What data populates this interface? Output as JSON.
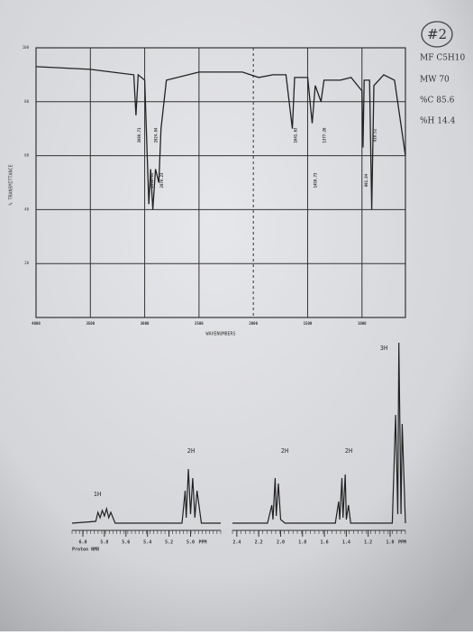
{
  "badge": "#2",
  "sidebar": [
    "MF C5H10",
    "MW 70",
    "%C 85.6",
    "%H 14.4"
  ],
  "chart_data": [
    {
      "type": "line",
      "xlabel": "WAVENUMBERS",
      "ylabel": "% TRANSMITTANCE",
      "color": "#222222",
      "xlim": [
        4000,
        600
      ],
      "ylim": [
        0,
        100
      ],
      "xticks": [
        4000,
        3500,
        3000,
        2500,
        2000,
        1500,
        1000
      ],
      "yticks": [
        20,
        40,
        60,
        80,
        100
      ],
      "grid": true,
      "x": [
        4000,
        3500,
        3100,
        3080,
        3060,
        3000,
        2962,
        2945,
        2925,
        2900,
        2870,
        2850,
        2800,
        2500,
        2100,
        1950,
        1820,
        1700,
        1641,
        1620,
        1500,
        1458,
        1430,
        1377,
        1350,
        1200,
        1100,
        1000,
        991,
        980,
        930,
        910,
        890,
        800,
        700,
        600
      ],
      "values": [
        93,
        92,
        90,
        75,
        90,
        88,
        42,
        55,
        40,
        55,
        50,
        70,
        88,
        91,
        91,
        89,
        90,
        90,
        70,
        89,
        89,
        72,
        86,
        80,
        88,
        88,
        89,
        84,
        63,
        88,
        88,
        40,
        86,
        90,
        88,
        60
      ],
      "peaks": [
        3080.71,
        2961.83,
        2924.84,
        2870.23,
        1641.63,
        1458.73,
        1377.26,
        991.04,
        910.52
      ]
    },
    {
      "type": "line",
      "color": "#222222",
      "xlim": [
        6.1,
        4.72
      ],
      "ylim": [
        0,
        100
      ],
      "xticks": [
        {
          "value": 6,
          "label": "6.0"
        },
        {
          "value": 5.8,
          "label": "5.8"
        },
        {
          "value": 5.6,
          "label": "5.6"
        },
        {
          "value": 5.4,
          "label": "5.4"
        },
        {
          "value": 5.2,
          "label": "5.2"
        },
        {
          "value": 5,
          "label": "5.0"
        }
      ],
      "unit": "PPM",
      "caption": "Proton NMR",
      "integrals": [
        "1H",
        "2H"
      ],
      "x": [
        6.1,
        5.88,
        5.86,
        5.84,
        5.82,
        5.8,
        5.78,
        5.76,
        5.74,
        5.7,
        5.08,
        5.05,
        5.04,
        5.02,
        5,
        4.98,
        4.96,
        4.94,
        4.9,
        4.72
      ],
      "values": [
        0,
        1,
        6,
        3,
        7,
        4,
        8,
        3,
        6,
        0,
        0,
        18,
        3,
        30,
        5,
        25,
        3,
        18,
        0,
        0
      ]
    },
    {
      "type": "line",
      "color": "#222222",
      "xlim": [
        2.44,
        0.86
      ],
      "ylim": [
        0,
        100
      ],
      "xticks": [
        {
          "value": 2.4,
          "label": "2.4"
        },
        {
          "value": 2.2,
          "label": "2.2"
        },
        {
          "value": 2,
          "label": "2.0"
        },
        {
          "value": 1.8,
          "label": "1.8"
        },
        {
          "value": 1.6,
          "label": "1.6"
        },
        {
          "value": 1.4,
          "label": "1.4"
        },
        {
          "value": 1.2,
          "label": "1.2"
        },
        {
          "value": 1,
          "label": "1.0"
        }
      ],
      "unit": "PPM",
      "integrals": [
        "2H",
        "2H",
        "3H"
      ],
      "x": [
        2.44,
        2.12,
        2.08,
        2.07,
        2.05,
        2.04,
        2.02,
        2,
        1.96,
        1.5,
        1.47,
        1.46,
        1.44,
        1.43,
        1.41,
        1.4,
        1.38,
        1.36,
        1.3,
        0.98,
        0.95,
        0.93,
        0.92,
        0.9,
        0.89,
        0.86
      ],
      "values": [
        0,
        0,
        10,
        2,
        25,
        4,
        22,
        2,
        0,
        0,
        12,
        2,
        25,
        3,
        27,
        2,
        10,
        0,
        0,
        0,
        60,
        5,
        100,
        5,
        55,
        0
      ]
    }
  ]
}
